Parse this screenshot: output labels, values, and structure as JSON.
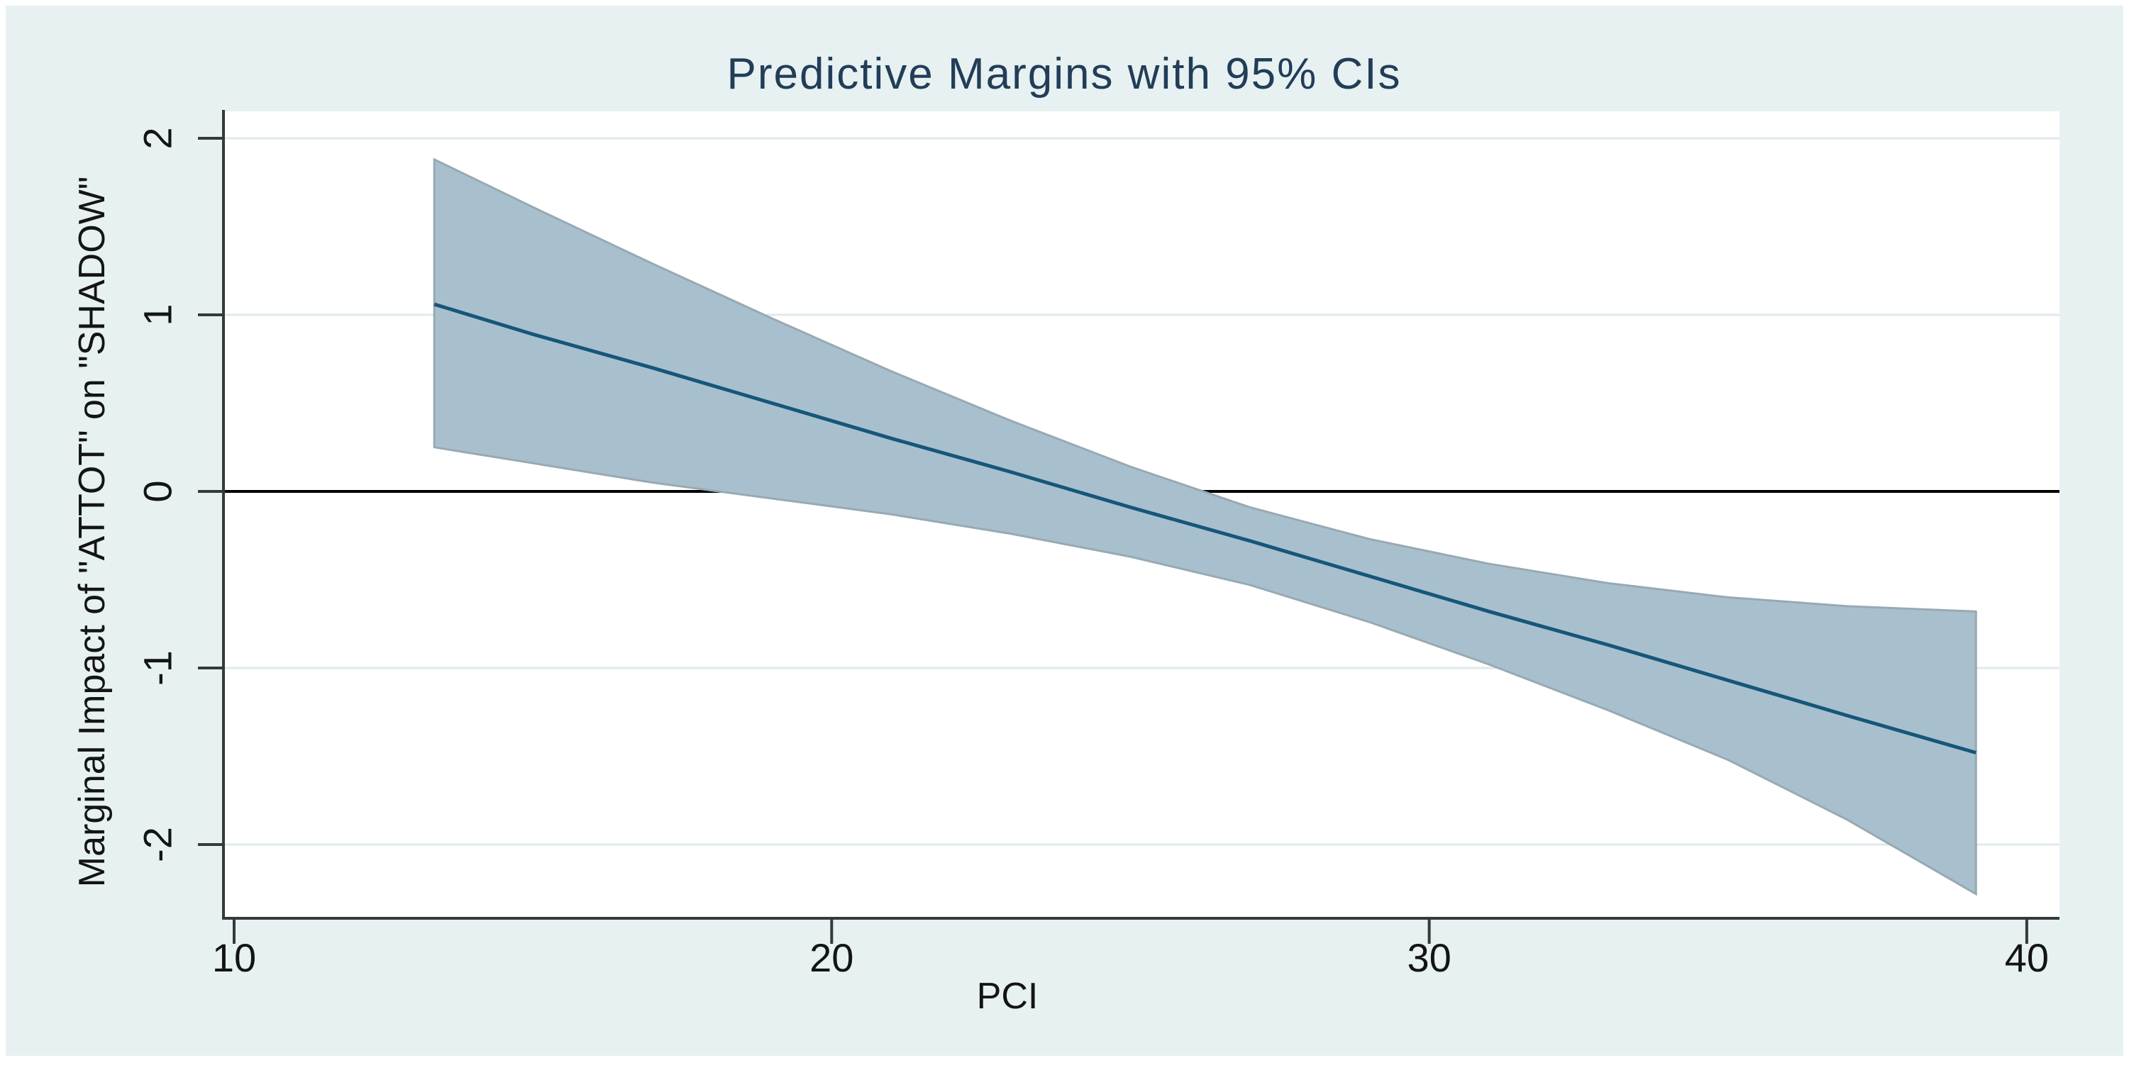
{
  "figure": {
    "kind": "stata-margins-plot",
    "background_color": "#e7f1f2",
    "plot_background_color": "#ffffff",
    "grid_color": "#dfeaee",
    "axis_color": "#36393b",
    "title_color": "#223d58",
    "line_color": "#16567a",
    "ci_fill_color": "#a8c0cd",
    "ci_edge_color": "#98a9b3",
    "zero_line_color": "#000000"
  },
  "chart_data": {
    "type": "line",
    "title": "Predictive Margins with 95% CIs",
    "xlabel": "PCI",
    "ylabel": "Marginal Impact of \"ATTOT\" on \"SHADOW\"",
    "x_ticks": [
      10,
      20,
      30,
      40
    ],
    "x_tick_labels": [
      "10",
      "20",
      "30",
      "40"
    ],
    "y_ticks": [
      2,
      1,
      0,
      -1,
      -2
    ],
    "y_tick_labels": [
      "2",
      "1",
      "0",
      "-1",
      "-2"
    ],
    "xlim": [
      9.8,
      40.6
    ],
    "ylim": [
      -2.42,
      2.15
    ],
    "grid": "horizontal",
    "legend": "none",
    "reference_line_y": 0,
    "x": [
      13.35,
      15,
      17,
      19,
      21,
      23,
      25,
      27,
      29,
      31,
      33,
      35,
      37,
      39.15
    ],
    "series": [
      {
        "name": "predictive-margin",
        "values": [
          1.06,
          0.89,
          0.7,
          0.5,
          0.3,
          0.11,
          -0.09,
          -0.28,
          -0.48,
          -0.68,
          -0.87,
          -1.07,
          -1.27,
          -1.48
        ]
      },
      {
        "name": "ci-95-upper",
        "values": [
          1.88,
          1.61,
          1.29,
          0.98,
          0.68,
          0.4,
          0.14,
          -0.09,
          -0.27,
          -0.41,
          -0.52,
          -0.6,
          -0.65,
          -0.68
        ]
      },
      {
        "name": "ci-95-lower",
        "values": [
          0.25,
          0.16,
          0.05,
          -0.04,
          -0.13,
          -0.24,
          -0.37,
          -0.53,
          -0.74,
          -0.98,
          -1.24,
          -1.52,
          -1.86,
          -2.28
        ]
      }
    ]
  }
}
